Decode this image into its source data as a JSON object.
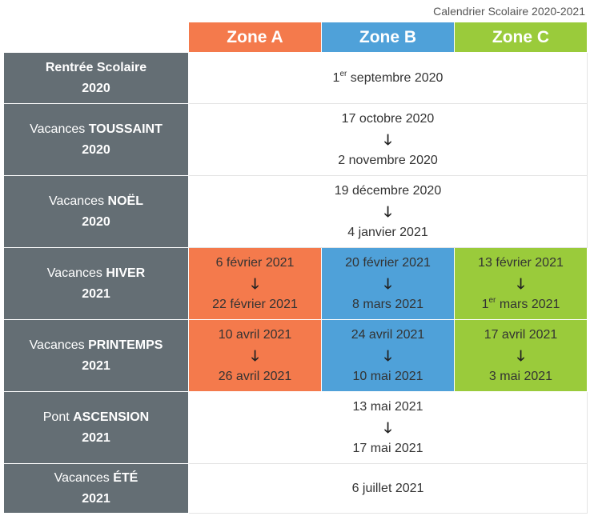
{
  "caption": "Calendrier Scolaire 2020-2021",
  "zones": [
    "Zone A",
    "Zone B",
    "Zone C"
  ],
  "arrow": "🡓",
  "colors": {
    "zone_a": "#f47a4c",
    "zone_b": "#4fa1d9",
    "zone_c": "#9acb3b",
    "label_bg": "#646e74"
  },
  "rows": [
    {
      "prefix": "",
      "bold": "Rentrée Scolaire",
      "year": "2020",
      "all": {
        "sup_prefix": "1",
        "sup": "er",
        "text": " septembre 2020"
      }
    },
    {
      "prefix": "Vacances ",
      "bold": "TOUSSAINT",
      "year": "2020",
      "all": {
        "start": "17 octobre 2020",
        "end": "2 novembre 2020"
      }
    },
    {
      "prefix": "Vacances ",
      "bold": "NOËL",
      "year": "2020",
      "all": {
        "start": "19 décembre 2020",
        "end": "4 janvier 2021"
      }
    },
    {
      "prefix": "Vacances ",
      "bold": "HIVER",
      "year": "2021",
      "a": {
        "start": "6 février 2021",
        "end": "22 février 2021"
      },
      "b": {
        "start": "20 février 2021",
        "end": "8 mars 2021"
      },
      "c": {
        "start": "13 février 2021",
        "end_sup_prefix": "1",
        "end_sup": "er",
        "end": " mars 2021"
      }
    },
    {
      "prefix": "Vacances ",
      "bold": "PRINTEMPS",
      "year": "2021",
      "a": {
        "start": "10 avril 2021",
        "end": "26 avril 2021"
      },
      "b": {
        "start": "24 avril 2021",
        "end": "10 mai 2021"
      },
      "c": {
        "start": "17 avril 2021",
        "end": "3 mai 2021"
      }
    },
    {
      "prefix": "Pont ",
      "bold": "ASCENSION",
      "year": "2021",
      "all": {
        "start": "13 mai 2021",
        "end": "17 mai 2021"
      }
    },
    {
      "prefix": "Vacances ",
      "bold": "ÉTÉ",
      "year": "2021",
      "all": {
        "text": "6 juillet 2021"
      }
    }
  ]
}
